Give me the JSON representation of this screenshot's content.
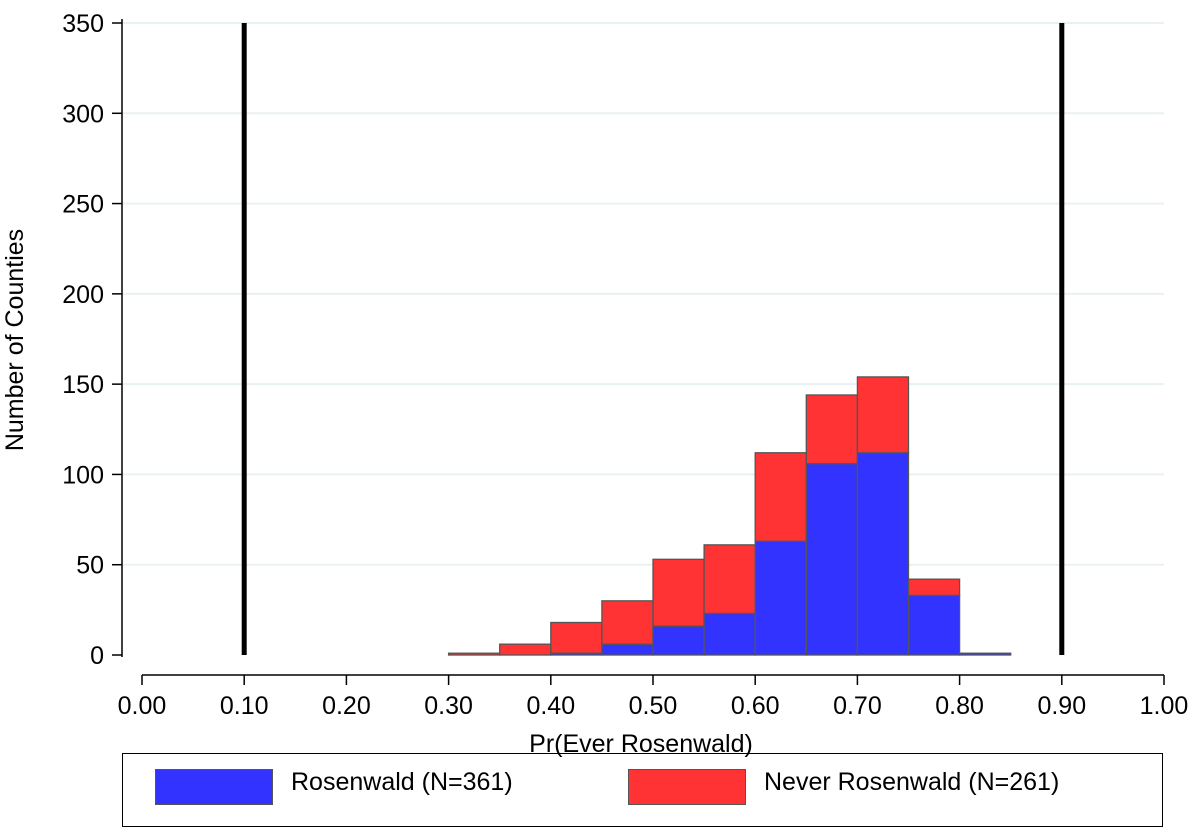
{
  "chart_data": {
    "type": "bar",
    "stacked": true,
    "xlabel": "Pr(Ever Rosenwald)",
    "ylabel": "Number of Counties",
    "xlim": [
      0,
      1
    ],
    "ylim": [
      0,
      350
    ],
    "xticks": [
      "0.00",
      "0.10",
      "0.20",
      "0.30",
      "0.40",
      "0.50",
      "0.60",
      "0.70",
      "0.80",
      "0.90",
      "1.00"
    ],
    "yticks": [
      "0",
      "50",
      "100",
      "150",
      "200",
      "250",
      "300",
      "350"
    ],
    "bin_width": 0.05,
    "bin_starts": [
      0.3,
      0.35,
      0.4,
      0.45,
      0.5,
      0.55,
      0.6,
      0.65,
      0.7,
      0.75,
      0.8
    ],
    "series": [
      {
        "name": "Rosenwald (N=361)",
        "color": "#3333ff",
        "values": [
          0,
          0,
          1,
          6,
          16,
          23,
          63,
          106,
          112,
          33,
          1
        ]
      },
      {
        "name": "Never Rosenwald (N=261)",
        "color": "#ff3333",
        "values": [
          1,
          6,
          17,
          24,
          37,
          38,
          49,
          38,
          42,
          9,
          0
        ]
      }
    ],
    "reference_lines": [
      0.1,
      0.9
    ],
    "grid": "horizontal",
    "legend_position": "bottom"
  }
}
